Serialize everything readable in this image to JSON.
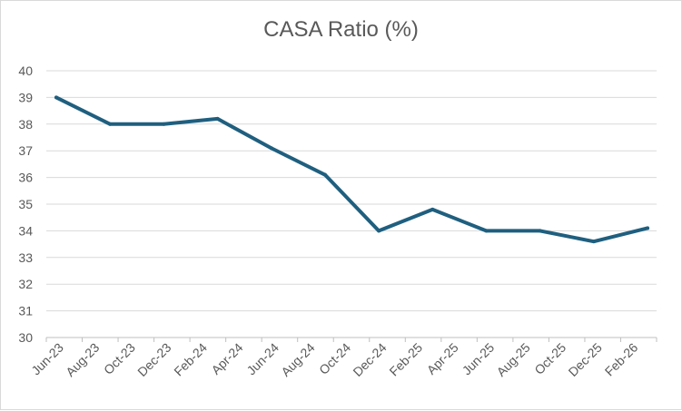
{
  "chart_data": {
    "type": "line",
    "title": "CASA Ratio (%)",
    "xlabel": "",
    "ylabel": "",
    "categories": [
      "Jun-23",
      "Aug-23",
      "Oct-23",
      "Dec-23",
      "Feb-24",
      "Apr-24",
      "Jun-24",
      "Aug-24",
      "Oct-24",
      "Dec-24",
      "Feb-25",
      "Apr-25",
      "Jun-25",
      "Aug-25",
      "Oct-25",
      "Dec-25",
      "Feb-26"
    ],
    "x": [
      "Jun-23",
      "Sep-23",
      "Dec-23",
      "Mar-24",
      "Jun-24",
      "Sep-24",
      "Dec-24",
      "Mar-25",
      "Jun-25",
      "Sep-25",
      "Dec-25",
      "Mar-26"
    ],
    "series": [
      {
        "values": [
          39.0,
          38.0,
          38.0,
          38.2,
          37.1,
          36.1,
          34.0,
          34.8,
          34.0,
          34.0,
          33.6,
          34.1
        ],
        "color": "#1f5f7f"
      }
    ],
    "ylim": [
      30,
      40
    ],
    "yticks": [
      30,
      31,
      32,
      33,
      34,
      35,
      36,
      37,
      38,
      39,
      40
    ],
    "grid": true,
    "legend": "none"
  }
}
